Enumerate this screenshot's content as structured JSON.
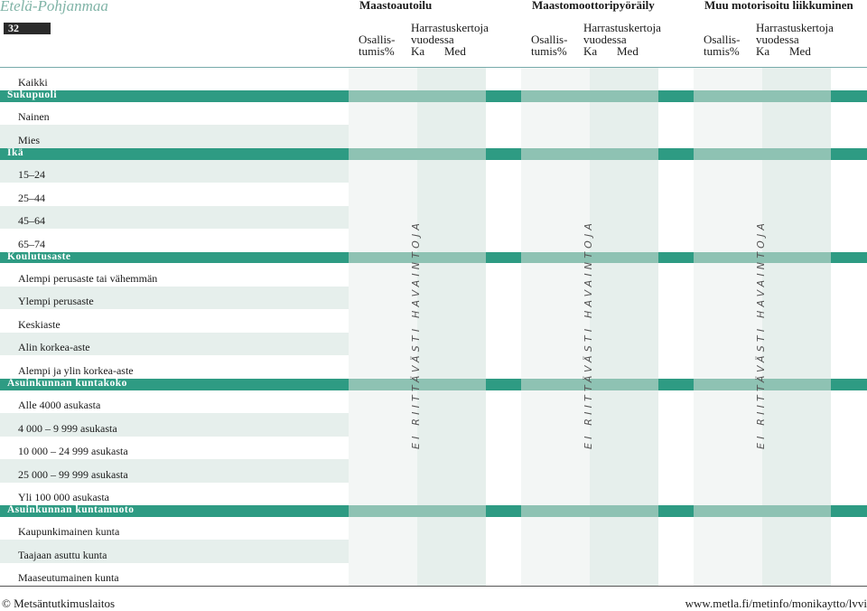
{
  "header": {
    "region": "Etelä-Pohjanmaa",
    "page_number": "32",
    "groups": [
      {
        "title": "Maastoautoilu",
        "col1": [
          "Osallis-",
          "tumis%"
        ],
        "col2": [
          "Harrastuskertoja",
          "vuodessa"
        ],
        "ka": "Ka",
        "med": "Med"
      },
      {
        "title": "Maastomoottoripyöräily",
        "col1": [
          "Osallis-",
          "tumis%"
        ],
        "col2": [
          "Harrastuskertoja",
          "vuodessa"
        ],
        "ka": "Ka",
        "med": "Med"
      },
      {
        "title": "Muu motorisoitu liikkuminen",
        "col1": [
          "Osallis-",
          "tumis%"
        ],
        "col2": [
          "Harrastuskertoja",
          "vuodessa"
        ],
        "ka": "Ka",
        "med": "Med"
      }
    ]
  },
  "rows": [
    {
      "type": "data",
      "label": "Kaikki"
    },
    {
      "type": "cat",
      "label": "Sukupuoli"
    },
    {
      "type": "data",
      "label": "Nainen"
    },
    {
      "type": "data",
      "label": "Mies"
    },
    {
      "type": "cat",
      "label": "Ikä"
    },
    {
      "type": "data",
      "label": "15–24"
    },
    {
      "type": "data",
      "label": "25–44"
    },
    {
      "type": "data",
      "label": "45–64"
    },
    {
      "type": "data",
      "label": "65–74"
    },
    {
      "type": "cat",
      "label": "Koulutusaste"
    },
    {
      "type": "data",
      "label": "Alempi perusaste tai vähemmän"
    },
    {
      "type": "data",
      "label": "Ylempi perusaste"
    },
    {
      "type": "data",
      "label": "Keskiaste"
    },
    {
      "type": "data",
      "label": "Alin korkea-aste"
    },
    {
      "type": "data",
      "label": "Alempi ja ylin korkea-aste"
    },
    {
      "type": "cat",
      "label": "Asuinkunnan kuntakoko"
    },
    {
      "type": "data",
      "label": "Alle 4000 asukasta"
    },
    {
      "type": "data",
      "label": "4 000 – 9 999 asukasta"
    },
    {
      "type": "data",
      "label": "10 000 – 24 999 asukasta"
    },
    {
      "type": "data",
      "label": "25 000 – 99 999 asukasta"
    },
    {
      "type": "data",
      "label": "Yli 100 000 asukasta"
    },
    {
      "type": "cat",
      "label": "Asuinkunnan kuntamuoto"
    },
    {
      "type": "data",
      "label": "Kaupunkimainen kunta"
    },
    {
      "type": "data",
      "label": "Taajaan asuttu kunta"
    },
    {
      "type": "data",
      "label": "Maaseutumainen kunta"
    }
  ],
  "notice": "EI RIITTÄVÄSTI HAVAINTOJA",
  "footer": {
    "left": "© Metsäntutkimuslaitos",
    "right": "www.metla.fi/metinfo/monikaytto/lvvi"
  }
}
